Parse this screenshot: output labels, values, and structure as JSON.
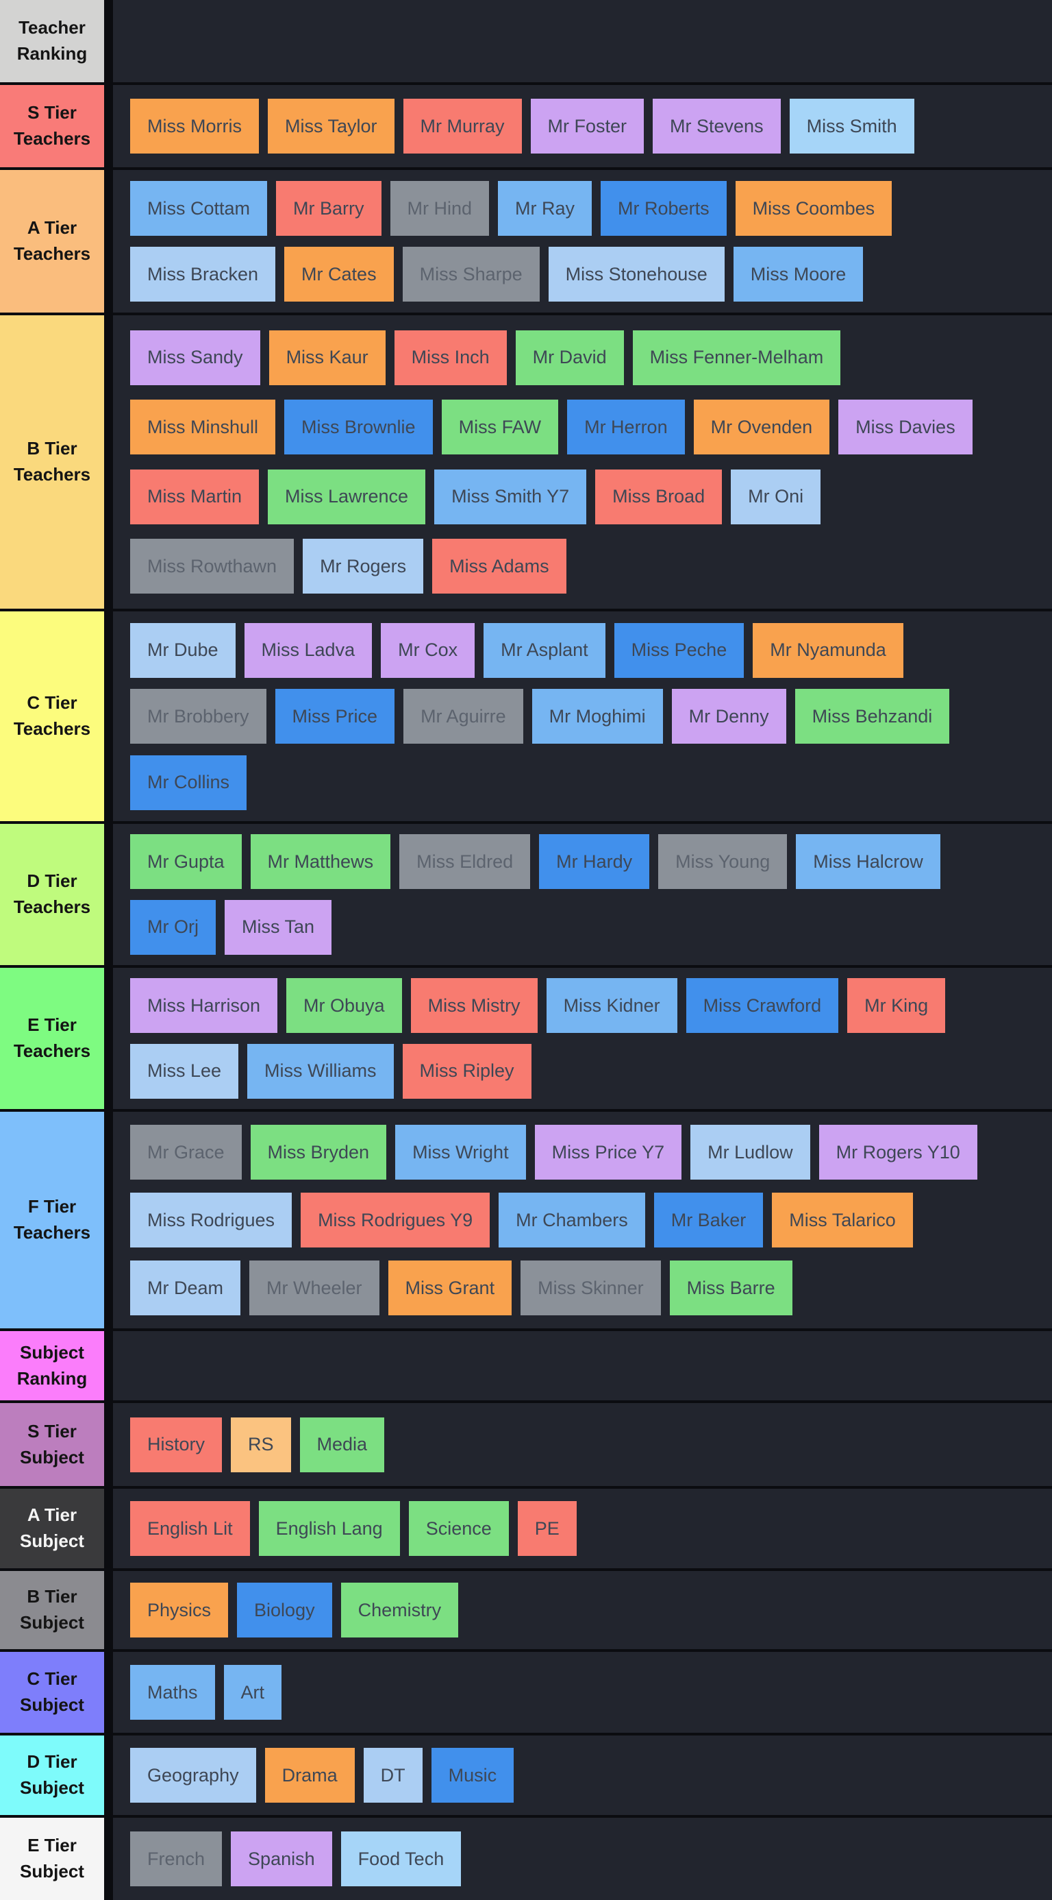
{
  "colors": {
    "board_background": "#22252e",
    "separator": "#0b0c10",
    "tile_text": "#3e4755",
    "tile_palette": {
      "orange": "#f9a24e",
      "lightorange": "#fbc380",
      "salmon": "#f87b70",
      "green": "#7cdf82",
      "pale": "#abcef3",
      "baby": "#a6d5f8",
      "sky": "#76b5f2",
      "blue": "#4190ec",
      "purple": "#cca3f2",
      "gray": "#8b9199"
    }
  },
  "tiers": [
    {
      "id": "teacher-ranking-header",
      "label": "Teacher\nRanking",
      "label_bg": "#d3d3d2",
      "rows": []
    },
    {
      "id": "s-tier-teachers",
      "label": "S Tier\nTeachers",
      "label_bg": "#f97b78",
      "rows": [
        [
          {
            "label": "Miss Morris",
            "color": "orange"
          },
          {
            "label": "Miss Taylor",
            "color": "orange"
          },
          {
            "label": "Mr Murray",
            "color": "salmon"
          },
          {
            "label": "Mr Foster",
            "color": "purple"
          },
          {
            "label": "Mr Stevens",
            "color": "purple"
          },
          {
            "label": "Miss Smith",
            "color": "baby"
          }
        ]
      ]
    },
    {
      "id": "a-tier-teachers",
      "label": "A Tier\nTeachers",
      "label_bg": "#fabd7d",
      "rows": [
        [
          {
            "label": "Miss Cottam",
            "color": "sky"
          },
          {
            "label": "Mr Barry",
            "color": "salmon"
          },
          {
            "label": "Mr Hind",
            "color": "gray"
          },
          {
            "label": "Mr Ray",
            "color": "sky"
          },
          {
            "label": "Mr Roberts",
            "color": "blue"
          },
          {
            "label": "Miss Coombes",
            "color": "orange"
          }
        ],
        [
          {
            "label": "Miss Bracken",
            "color": "pale"
          },
          {
            "label": "Mr Cates",
            "color": "orange"
          },
          {
            "label": "Miss Sharpe",
            "color": "gray"
          },
          {
            "label": "Miss Stonehouse",
            "color": "pale"
          },
          {
            "label": "Miss Moore",
            "color": "sky"
          }
        ]
      ]
    },
    {
      "id": "b-tier-teachers",
      "label": "B Tier\nTeachers",
      "label_bg": "#fad97d",
      "rows": [
        [
          {
            "label": "Miss Sandy",
            "color": "purple"
          },
          {
            "label": "Miss Kaur",
            "color": "orange"
          },
          {
            "label": "Miss Inch",
            "color": "salmon"
          },
          {
            "label": "Mr David",
            "color": "green"
          },
          {
            "label": "Miss Fenner-Melham",
            "color": "green"
          }
        ],
        [
          {
            "label": "Miss Minshull",
            "color": "orange"
          },
          {
            "label": "Miss Brownlie",
            "color": "blue"
          },
          {
            "label": "Miss FAW",
            "color": "green"
          },
          {
            "label": "Mr Herron",
            "color": "blue"
          },
          {
            "label": "Mr Ovenden",
            "color": "orange"
          },
          {
            "label": "Miss Davies",
            "color": "purple"
          }
        ],
        [
          {
            "label": "Miss Martin",
            "color": "salmon"
          },
          {
            "label": "Miss Lawrence",
            "color": "green"
          },
          {
            "label": "Miss Smith Y7",
            "color": "sky"
          },
          {
            "label": "Miss Broad",
            "color": "salmon"
          },
          {
            "label": "Mr Oni",
            "color": "pale"
          }
        ],
        [
          {
            "label": "Miss Rowthawn",
            "color": "gray"
          },
          {
            "label": "Mr Rogers",
            "color": "pale"
          },
          {
            "label": "Miss Adams",
            "color": "salmon"
          }
        ]
      ]
    },
    {
      "id": "c-tier-teachers",
      "label": "C Tier\nTeachers",
      "label_bg": "#fcfc7d",
      "rows": [
        [
          {
            "label": "Mr Dube",
            "color": "pale"
          },
          {
            "label": "Miss Ladva",
            "color": "purple"
          },
          {
            "label": "Mr Cox",
            "color": "purple"
          },
          {
            "label": "Mr Asplant",
            "color": "sky"
          },
          {
            "label": "Miss Peche",
            "color": "blue"
          },
          {
            "label": "Mr Nyamunda",
            "color": "orange"
          }
        ],
        [
          {
            "label": "Mr Brobbery",
            "color": "gray"
          },
          {
            "label": "Miss Price",
            "color": "blue"
          },
          {
            "label": "Mr Aguirre",
            "color": "gray"
          },
          {
            "label": "Mr Moghimi",
            "color": "sky"
          },
          {
            "label": "Mr Denny",
            "color": "purple"
          },
          {
            "label": "Miss Behzandi",
            "color": "green"
          }
        ],
        [
          {
            "label": "Mr Collins",
            "color": "blue"
          }
        ]
      ]
    },
    {
      "id": "d-tier-teachers",
      "label": "D Tier\nTeachers",
      "label_bg": "#bffb7d",
      "rows": [
        [
          {
            "label": "Mr Gupta",
            "color": "green"
          },
          {
            "label": "Mr Matthews",
            "color": "green"
          },
          {
            "label": "Miss Eldred",
            "color": "gray"
          },
          {
            "label": "Mr Hardy",
            "color": "blue"
          },
          {
            "label": "Miss Young",
            "color": "gray"
          },
          {
            "label": "Miss Halcrow",
            "color": "sky"
          }
        ],
        [
          {
            "label": "Mr Orj",
            "color": "blue"
          },
          {
            "label": "Miss Tan",
            "color": "purple"
          }
        ]
      ]
    },
    {
      "id": "e-tier-teachers",
      "label": "E Tier\nTeachers",
      "label_bg": "#7efb81",
      "rows": [
        [
          {
            "label": "Miss Harrison",
            "color": "purple"
          },
          {
            "label": "Mr Obuya",
            "color": "green"
          },
          {
            "label": "Miss Mistry",
            "color": "salmon"
          },
          {
            "label": "Miss Kidner",
            "color": "sky"
          },
          {
            "label": "Miss Crawford",
            "color": "blue"
          },
          {
            "label": "Mr King",
            "color": "salmon"
          }
        ],
        [
          {
            "label": "Miss Lee",
            "color": "pale"
          },
          {
            "label": "Miss Williams",
            "color": "sky"
          },
          {
            "label": "Miss Ripley",
            "color": "salmon"
          }
        ]
      ]
    },
    {
      "id": "f-tier-teachers",
      "label": "F Tier\nTeachers",
      "label_bg": "#7ebffb",
      "rows": [
        [
          {
            "label": "Mr Grace",
            "color": "gray"
          },
          {
            "label": "Miss Bryden",
            "color": "green"
          },
          {
            "label": "Miss Wright",
            "color": "sky"
          },
          {
            "label": "Miss Price Y7",
            "color": "purple"
          },
          {
            "label": "Mr Ludlow",
            "color": "pale"
          },
          {
            "label": "Mr Rogers Y10",
            "color": "purple"
          }
        ],
        [
          {
            "label": "Miss Rodrigues",
            "color": "pale"
          },
          {
            "label": "Miss Rodrigues Y9",
            "color": "salmon"
          },
          {
            "label": "Mr Chambers",
            "color": "sky"
          },
          {
            "label": "Mr Baker",
            "color": "blue"
          },
          {
            "label": "Miss Talarico",
            "color": "orange"
          }
        ],
        [
          {
            "label": "Mr Deam",
            "color": "pale"
          },
          {
            "label": "Mr Wheeler",
            "color": "gray"
          },
          {
            "label": "Miss Grant",
            "color": "orange"
          },
          {
            "label": "Miss Skinner",
            "color": "gray"
          },
          {
            "label": "Miss Barre",
            "color": "green"
          }
        ]
      ]
    },
    {
      "id": "subject-ranking-header",
      "label": "Subject\nRanking",
      "label_bg": "#fb7dfb",
      "rows": []
    },
    {
      "id": "s-tier-subject",
      "label": "S Tier\nSubject",
      "label_bg": "#bc7ebe",
      "rows": [
        [
          {
            "label": "History",
            "color": "salmon"
          },
          {
            "label": "RS",
            "color": "lightorange"
          },
          {
            "label": "Media",
            "color": "green"
          }
        ]
      ]
    },
    {
      "id": "a-tier-subject",
      "label": "A Tier\nSubject",
      "label_bg": "#3a3a3c",
      "label_text_color": "#f5f5f5",
      "rows": [
        [
          {
            "label": "English Lit",
            "color": "salmon"
          },
          {
            "label": "English Lang",
            "color": "green"
          },
          {
            "label": "Science",
            "color": "green"
          },
          {
            "label": "PE",
            "color": "salmon"
          }
        ]
      ]
    },
    {
      "id": "b-tier-subject",
      "label": "B Tier\nSubject",
      "label_bg": "#8b8b90",
      "rows": [
        [
          {
            "label": "Physics",
            "color": "orange"
          },
          {
            "label": "Biology",
            "color": "blue"
          },
          {
            "label": "Chemistry",
            "color": "green"
          }
        ]
      ]
    },
    {
      "id": "c-tier-subject",
      "label": "C Tier\nSubject",
      "label_bg": "#7e7efb",
      "rows": [
        [
          {
            "label": "Maths",
            "color": "sky"
          },
          {
            "label": "Art",
            "color": "sky"
          }
        ]
      ]
    },
    {
      "id": "d-tier-subject",
      "label": "D Tier\nSubject",
      "label_bg": "#7efbfb",
      "rows": [
        [
          {
            "label": "Geography",
            "color": "pale"
          },
          {
            "label": "Drama",
            "color": "orange"
          },
          {
            "label": "DT",
            "color": "pale"
          },
          {
            "label": "Music",
            "color": "blue"
          }
        ]
      ]
    },
    {
      "id": "e-tier-subject",
      "label": "E Tier\nSubject",
      "label_bg": "#f5f5f5",
      "rows": [
        [
          {
            "label": "French",
            "color": "gray"
          },
          {
            "label": "Spanish",
            "color": "purple"
          },
          {
            "label": "Food Tech",
            "color": "baby"
          }
        ]
      ]
    }
  ]
}
